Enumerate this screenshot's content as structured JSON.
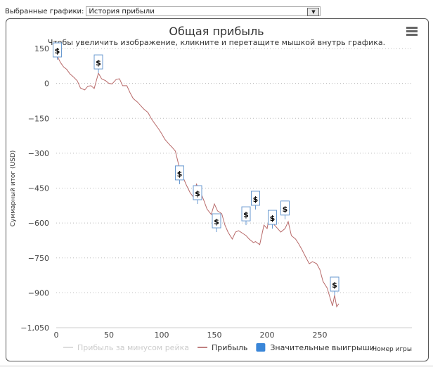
{
  "selector": {
    "label": "Выбранные графики:",
    "value": "История прибыли"
  },
  "menu_icon": "hamburger-icon",
  "chart_data": {
    "type": "line",
    "title": "Общая прибыль",
    "subtitle": "Чтобы увеличить изображение, кликните и перетащите мышкой внутрь графика.",
    "xlabel": "Номер игры",
    "ylabel": "Суммарный итог (USD)",
    "xlim": [
      0,
      270
    ],
    "ylim": [
      -1050,
      150
    ],
    "xticks": [
      0,
      50,
      100,
      150,
      200,
      250
    ],
    "yticks": [
      150,
      0,
      -150,
      -300,
      -450,
      -600,
      -750,
      -900,
      -1050
    ],
    "ytick_labels": [
      "150",
      "0",
      "−150",
      "−300",
      "−450",
      "−600",
      "−750",
      "−900",
      "−1,050"
    ],
    "grid": "horizontal dotted",
    "legend": {
      "placement": "bottom",
      "entries": [
        {
          "name": "Прибыль за минусом рейка",
          "color": "#dddddd",
          "hidden": true
        },
        {
          "name": "Прибыль",
          "color": "#c08080"
        },
        {
          "name": "Значительные выигрыши",
          "color": "#3a86d8"
        }
      ]
    },
    "series": [
      {
        "name": "Прибыль",
        "color": "#b86a6a",
        "x": [
          1,
          4,
          7,
          10,
          13,
          17,
          20,
          23,
          27,
          30,
          33,
          36,
          40,
          43,
          47,
          50,
          53,
          57,
          60,
          63,
          67,
          70,
          73,
          77,
          80,
          83,
          87,
          90,
          93,
          97,
          100,
          103,
          107,
          110,
          113,
          117,
          120,
          123,
          127,
          130,
          133,
          137,
          140,
          143,
          147,
          150,
          153,
          157,
          160,
          163,
          167,
          170,
          173,
          177,
          180,
          183,
          187,
          189,
          193,
          197,
          200,
          203,
          207,
          210,
          213,
          217,
          220,
          223,
          227,
          230,
          233,
          237,
          240,
          243,
          247,
          250,
          253,
          257,
          260,
          262,
          264,
          266,
          268
        ],
        "y": [
          117,
          90,
          71,
          60,
          41,
          25,
          11,
          -20,
          -28,
          -12,
          -10,
          -22,
          44,
          20,
          11,
          0,
          -2,
          18,
          20,
          -10,
          -10,
          -40,
          -65,
          -80,
          -95,
          -110,
          -125,
          -150,
          -170,
          -195,
          -216,
          -240,
          -261,
          -275,
          -291,
          -367,
          -400,
          -433,
          -470,
          -488,
          -433,
          -470,
          -503,
          -540,
          -563,
          -518,
          -548,
          -560,
          -609,
          -640,
          -669,
          -639,
          -633,
          -645,
          -654,
          -669,
          -684,
          -680,
          -693,
          -609,
          -624,
          -548,
          -609,
          -624,
          -639,
          -624,
          -594,
          -654,
          -669,
          -690,
          -714,
          -750,
          -775,
          -766,
          -775,
          -800,
          -851,
          -880,
          -926,
          -956,
          -911,
          -960,
          -947
        ]
      }
    ],
    "flags": {
      "name": "Значительные выигрыши",
      "label": "$",
      "x": [
        1,
        40,
        117,
        134,
        152,
        180,
        189,
        205,
        217,
        264
      ],
      "y": [
        102,
        44,
        -433,
        -518,
        -639,
        -609,
        -542,
        -624,
        -584,
        -911
      ]
    }
  }
}
